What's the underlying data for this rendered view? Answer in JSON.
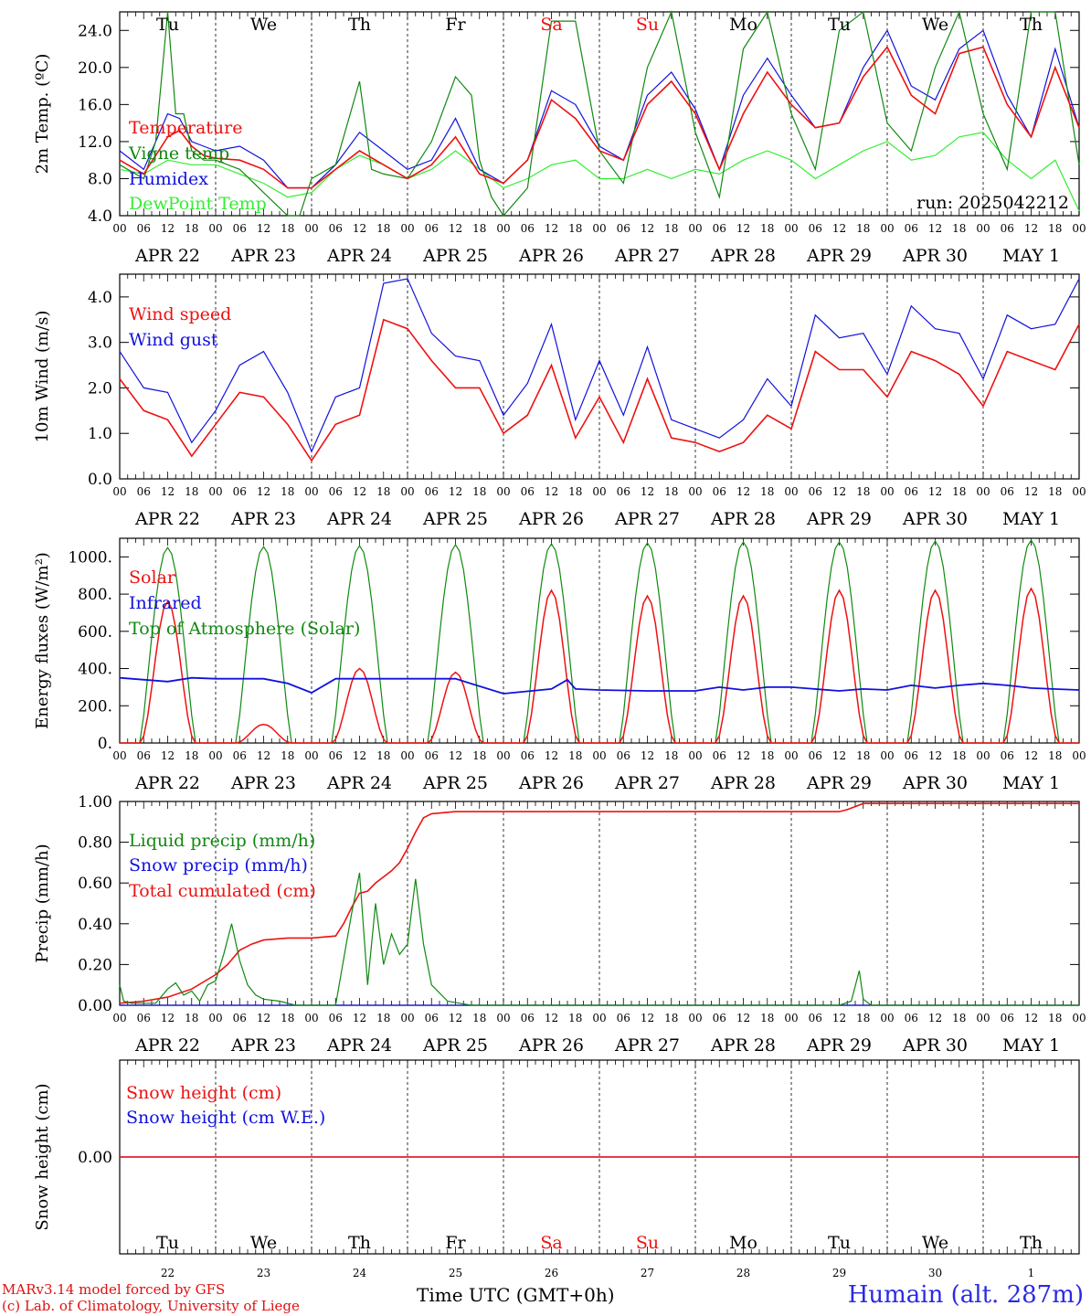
{
  "colors": {
    "red": "#ee1111",
    "green": "#118811",
    "blue": "#1111dd",
    "lightgreen": "#33ee33",
    "weekend": "#ee1111"
  },
  "days": {
    "names": [
      "Tu",
      "We",
      "Th",
      "Fr",
      "Sa",
      "Su",
      "Mo",
      "Tu",
      "We",
      "Th"
    ],
    "weekend": [
      false,
      false,
      false,
      false,
      true,
      true,
      false,
      false,
      false,
      false
    ],
    "dates": [
      "APR 22",
      "APR 23",
      "APR 24",
      "APR 25",
      "APR 26",
      "APR 27",
      "APR 28",
      "APR 29",
      "APR 30",
      "MAY  1"
    ],
    "numbers": [
      "22",
      "23",
      "24",
      "25",
      "26",
      "27",
      "28",
      "29",
      "30",
      "1"
    ],
    "hour_ticks": [
      "00",
      "06",
      "12",
      "18"
    ],
    "hour_end": "00"
  },
  "footer": {
    "credit_line1": "MARv3.14 model forced by GFS",
    "credit_line2": "(c) Lab. of Climatology, University of Liege",
    "x_title": "Time UTC (GMT+0h)",
    "station": "Humain (alt. 287m)"
  },
  "chart_data": [
    {
      "type": "line",
      "ylabel": "2m Temp. (ºC)",
      "ylim": [
        4,
        26
      ],
      "yticks": [
        "4.0",
        "8.0",
        "12.0",
        "16.0",
        "20.0",
        "24.0"
      ],
      "ytick_values": [
        4,
        8,
        12,
        16,
        20,
        24
      ],
      "annotation": "run: 2025042212",
      "x_unit": "hours since APR 22 00 UTC",
      "series": [
        {
          "name": "Temperature",
          "color": "red",
          "x": [
            0,
            6,
            12,
            15,
            18,
            21,
            24,
            30,
            36,
            42,
            48,
            54,
            60,
            66,
            72,
            78,
            84,
            90,
            96,
            102,
            108,
            114,
            120,
            126,
            132,
            138,
            144,
            150,
            156,
            162,
            168,
            174,
            180,
            186,
            192,
            198,
            204,
            210,
            216,
            222,
            228,
            234,
            240
          ],
          "y": [
            10,
            8.5,
            12.5,
            13.2,
            11.5,
            10.5,
            10.2,
            10,
            9,
            7,
            7,
            9,
            11,
            9.5,
            8,
            9.5,
            12.5,
            8.5,
            7.5,
            10,
            16.5,
            14.5,
            11,
            10,
            16,
            18.5,
            15,
            9,
            15,
            19.5,
            16,
            13.5,
            14,
            19,
            22.2,
            17,
            15,
            21.5,
            22.2,
            16,
            12.5,
            20,
            13.5
          ]
        },
        {
          "name": "Vigne temp",
          "color": "green",
          "x": [
            0,
            6,
            9,
            12,
            14,
            16,
            18,
            21,
            24,
            30,
            36,
            42,
            45,
            48,
            54,
            60,
            63,
            66,
            72,
            78,
            84,
            88,
            90,
            93,
            96,
            102,
            108,
            114,
            120,
            126,
            132,
            138,
            144,
            150,
            156,
            162,
            168,
            174,
            180,
            186,
            192,
            198,
            204,
            210,
            216,
            222,
            228,
            234,
            240
          ],
          "y": [
            9.5,
            8,
            12,
            26,
            15,
            15,
            11,
            10,
            10,
            9,
            6.5,
            3,
            3,
            8,
            9.5,
            18.5,
            9,
            8.5,
            8,
            12,
            19,
            17,
            10,
            6,
            3,
            7,
            25,
            25,
            11,
            7.5,
            20,
            26,
            13,
            6,
            22,
            26,
            15,
            9,
            24,
            26,
            14,
            11,
            20,
            26,
            15,
            9,
            26,
            26,
            9.5
          ]
        },
        {
          "name": "Humidex",
          "color": "blue",
          "x": [
            0,
            6,
            12,
            15,
            18,
            21,
            24,
            30,
            36,
            42,
            48,
            54,
            60,
            66,
            72,
            78,
            84,
            90,
            96,
            102,
            108,
            114,
            120,
            126,
            132,
            138,
            144,
            150,
            156,
            162,
            168,
            174,
            180,
            186,
            192,
            198,
            204,
            210,
            216,
            222,
            228,
            234,
            240
          ],
          "y": [
            11,
            9,
            15,
            14.5,
            12,
            11.5,
            11,
            11.5,
            10,
            7,
            7,
            9.5,
            13,
            11,
            9,
            10,
            14.5,
            9,
            7.5,
            10,
            17.5,
            16,
            11.5,
            10,
            17,
            19.5,
            15.5,
            9,
            17,
            21,
            17,
            13.5,
            14,
            20,
            24,
            18,
            16.5,
            22,
            24,
            17,
            12.5,
            22,
            13.5
          ]
        },
        {
          "name": "DewPoint Temp",
          "color": "lightgreen",
          "x": [
            0,
            6,
            12,
            18,
            24,
            30,
            36,
            42,
            48,
            54,
            60,
            66,
            72,
            78,
            84,
            90,
            96,
            102,
            108,
            114,
            120,
            126,
            132,
            138,
            144,
            150,
            156,
            162,
            168,
            174,
            180,
            186,
            192,
            198,
            204,
            210,
            216,
            222,
            228,
            234,
            240
          ],
          "y": [
            9,
            8.5,
            10,
            9.5,
            9.5,
            8.5,
            7.5,
            6,
            6.5,
            9,
            10.5,
            9.5,
            8,
            9,
            11,
            9,
            7,
            8,
            9.5,
            10,
            8,
            8,
            9,
            8,
            9,
            8.5,
            10,
            11,
            10,
            8,
            9.5,
            11,
            12,
            10,
            10.5,
            12.5,
            13,
            10,
            8,
            10,
            4.5
          ]
        }
      ]
    },
    {
      "type": "line",
      "ylabel": "10m Wind (m/s)",
      "ylim": [
        0,
        4.5
      ],
      "yticks": [
        "0.0",
        "1.0",
        "2.0",
        "3.0",
        "4.0"
      ],
      "ytick_values": [
        0,
        1,
        2,
        3,
        4
      ],
      "x_unit": "hours since APR 22 00 UTC",
      "series": [
        {
          "name": "Wind speed",
          "color": "red",
          "x": [
            0,
            6,
            12,
            18,
            24,
            30,
            36,
            42,
            48,
            54,
            60,
            66,
            72,
            78,
            84,
            90,
            96,
            102,
            108,
            114,
            120,
            126,
            132,
            138,
            144,
            150,
            156,
            162,
            168,
            174,
            180,
            186,
            192,
            198,
            204,
            210,
            216,
            222,
            228,
            234,
            240
          ],
          "y": [
            2.2,
            1.5,
            1.3,
            0.5,
            1.2,
            1.9,
            1.8,
            1.2,
            0.4,
            1.2,
            1.4,
            3.5,
            3.3,
            2.6,
            2,
            2,
            1,
            1.4,
            2.5,
            0.9,
            1.8,
            0.8,
            2.2,
            0.9,
            0.8,
            0.6,
            0.8,
            1.4,
            1.1,
            2.8,
            2.4,
            2.4,
            1.8,
            2.8,
            2.6,
            2.3,
            1.6,
            2.8,
            2.6,
            2.4,
            3.4
          ]
        },
        {
          "name": "Wind gust",
          "color": "blue",
          "x": [
            0,
            6,
            12,
            18,
            24,
            30,
            36,
            42,
            48,
            54,
            60,
            66,
            72,
            78,
            84,
            90,
            96,
            102,
            108,
            114,
            120,
            126,
            132,
            138,
            144,
            150,
            156,
            162,
            168,
            174,
            180,
            186,
            192,
            198,
            204,
            210,
            216,
            222,
            228,
            234,
            240
          ],
          "y": [
            2.8,
            2,
            1.9,
            0.8,
            1.5,
            2.5,
            2.8,
            1.9,
            0.6,
            1.8,
            2,
            4.3,
            4.4,
            3.2,
            2.7,
            2.6,
            1.4,
            2.1,
            3.4,
            1.3,
            2.6,
            1.4,
            2.9,
            1.3,
            1.1,
            0.9,
            1.3,
            2.2,
            1.6,
            3.6,
            3.1,
            3.2,
            2.3,
            3.8,
            3.3,
            3.2,
            2.2,
            3.6,
            3.3,
            3.4,
            4.4
          ]
        }
      ]
    },
    {
      "type": "line",
      "ylabel": "Energy fluxes (W/m²)",
      "ylim": [
        0,
        1100
      ],
      "yticks": [
        "0.",
        "200.",
        "400.",
        "600.",
        "800.",
        "1000."
      ],
      "ytick_values": [
        0,
        200,
        400,
        600,
        800,
        1000
      ],
      "x_unit": "hours since APR 22 00 UTC",
      "toa_daily_peak": [
        1050,
        1055,
        1060,
        1065,
        1070,
        1075,
        1080,
        1080,
        1085,
        1090
      ],
      "solar_daily_peak": [
        760,
        100,
        400,
        380,
        820,
        790,
        790,
        820,
        820,
        830
      ],
      "series": [
        {
          "name": "Solar",
          "color": "red"
        },
        {
          "name": "Infrared",
          "color": "blue",
          "x": [
            0,
            12,
            18,
            24,
            36,
            42,
            48,
            54,
            60,
            66,
            72,
            84,
            96,
            108,
            112,
            114,
            120,
            132,
            144,
            150,
            156,
            162,
            168,
            180,
            186,
            192,
            198,
            204,
            210,
            216,
            222,
            228,
            240
          ],
          "y": [
            350,
            330,
            350,
            345,
            345,
            320,
            270,
            345,
            345,
            345,
            345,
            345,
            265,
            290,
            340,
            290,
            285,
            280,
            280,
            300,
            285,
            300,
            300,
            280,
            290,
            285,
            310,
            295,
            310,
            320,
            310,
            295,
            285
          ]
        },
        {
          "name": "Top of Atmosphere (Solar)",
          "color": "green"
        }
      ]
    },
    {
      "type": "line",
      "ylabel": "Precip (mm/h)",
      "ylim": [
        0,
        1
      ],
      "yticks": [
        "0.00",
        "0.20",
        "0.40",
        "0.60",
        "0.80",
        "1.00"
      ],
      "ytick_values": [
        0,
        0.2,
        0.4,
        0.6,
        0.8,
        1.0
      ],
      "x_unit": "hours since APR 22 00 UTC",
      "series": [
        {
          "name": "Liquid precip (mm/h)",
          "color": "green",
          "x": [
            0,
            1,
            3,
            9,
            12,
            14,
            16,
            18,
            20,
            22,
            24,
            26,
            28,
            30,
            32,
            34,
            36,
            40,
            44,
            48,
            54,
            58,
            60,
            62,
            64,
            66,
            68,
            70,
            72,
            74,
            76,
            78,
            82,
            88,
            96,
            180,
            183,
            185,
            186,
            188,
            240
          ],
          "y": [
            0.1,
            0.02,
            0.01,
            0.01,
            0.08,
            0.11,
            0.05,
            0.07,
            0.02,
            0.1,
            0.12,
            0.25,
            0.4,
            0.22,
            0.1,
            0.05,
            0.03,
            0.02,
            0,
            0,
            0,
            0.45,
            0.65,
            0.1,
            0.5,
            0.2,
            0.35,
            0.25,
            0.3,
            0.62,
            0.3,
            0.1,
            0.02,
            0,
            0,
            0,
            0.02,
            0.17,
            0.03,
            0,
            0
          ]
        },
        {
          "name": "Snow precip (mm/h)",
          "color": "blue",
          "x": [
            0,
            240
          ],
          "y": [
            0,
            0
          ]
        },
        {
          "name": "Total cumulated (cm)",
          "color": "red",
          "x": [
            0,
            6,
            12,
            18,
            24,
            27,
            30,
            33,
            36,
            42,
            48,
            54,
            56,
            58,
            60,
            62,
            64,
            66,
            68,
            70,
            72,
            74,
            76,
            78,
            84,
            180,
            182,
            186,
            240
          ],
          "y": [
            0.01,
            0.02,
            0.04,
            0.08,
            0.15,
            0.2,
            0.27,
            0.3,
            0.32,
            0.33,
            0.33,
            0.34,
            0.4,
            0.48,
            0.55,
            0.56,
            0.6,
            0.63,
            0.66,
            0.7,
            0.77,
            0.85,
            0.92,
            0.94,
            0.95,
            0.95,
            0.96,
            0.99,
            0.99
          ]
        }
      ]
    },
    {
      "type": "line",
      "ylabel": "Snow height (cm)",
      "ylim": [
        -1,
        1
      ],
      "yticks": [
        "0.00"
      ],
      "ytick_values": [
        0
      ],
      "x_unit": "hours since APR 22 00 UTC",
      "series": [
        {
          "name": "Snow height (cm)",
          "color": "red",
          "x": [
            0,
            240
          ],
          "y": [
            0,
            0
          ]
        },
        {
          "name": "Snow height (cm W.E.)",
          "color": "blue",
          "x": [
            0,
            240
          ],
          "y": [
            0,
            0
          ]
        }
      ]
    }
  ]
}
